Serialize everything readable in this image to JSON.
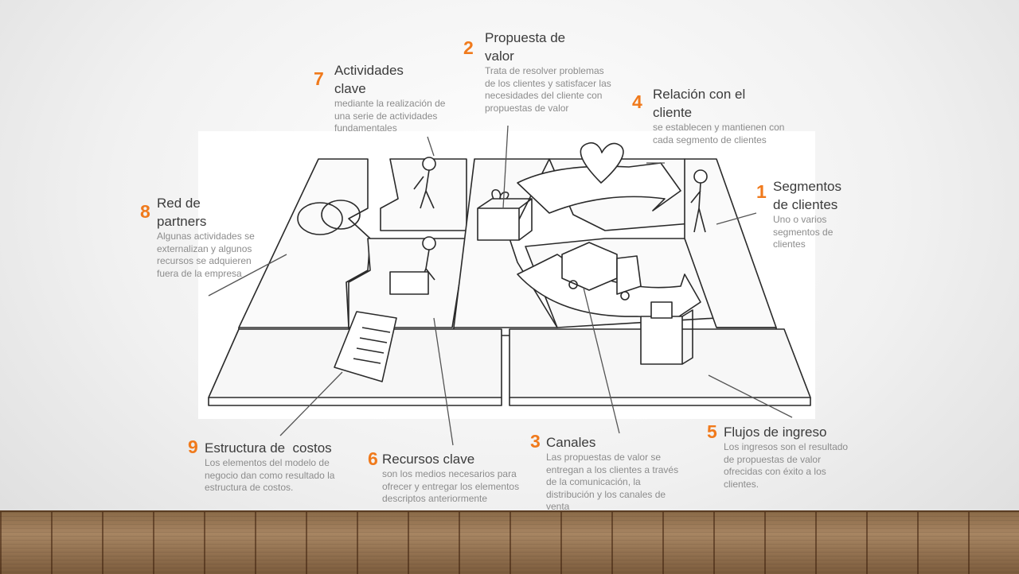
{
  "blocks": [
    {
      "key": "segmentos",
      "number": "1",
      "title": "Segmentos de clientes",
      "description": "Uno o varios segmentos de clientes"
    },
    {
      "key": "propuesta",
      "number": "2",
      "title": "Propuesta de valor",
      "description": "Trata de resolver problemas de los clientes y satisfacer las necesidades del cliente con propuestas de valor"
    },
    {
      "key": "canales",
      "number": "3",
      "title": "Canales",
      "description": "Las propuestas de valor se entregan a los clientes a través de la comunicación, la distribución y los canales de venta"
    },
    {
      "key": "relacion",
      "number": "4",
      "title": "Relación con el cliente",
      "description": "se establecen y mantienen con cada segmento de clientes"
    },
    {
      "key": "flujos",
      "number": "5",
      "title": "Flujos de ingreso",
      "description": "Los ingresos son el resultado de propuestas de valor ofrecidas con éxito a los clientes."
    },
    {
      "key": "recursos",
      "number": "6",
      "title": "Recursos clave",
      "description": "son los medios necesarios para ofrecer y entregar los elementos descriptos anteriormente"
    },
    {
      "key": "actividades",
      "number": "7",
      "title": "Actividades clave",
      "description": "mediante la realización de una serie de actividades fundamentales"
    },
    {
      "key": "red",
      "number": "8",
      "title": "Red de partners",
      "description": "Algunas actividades se externalizan y algunos recursos se adquieren fuera de la empresa"
    },
    {
      "key": "costos",
      "number": "9",
      "title": "Estructura de  costos",
      "description": "Los elementos del modelo de negocio dan como resultado la estructura de costos."
    }
  ],
  "colors": {
    "number": "#f07a1c",
    "title": "#3b3b3b",
    "description": "#8c8c8c"
  }
}
